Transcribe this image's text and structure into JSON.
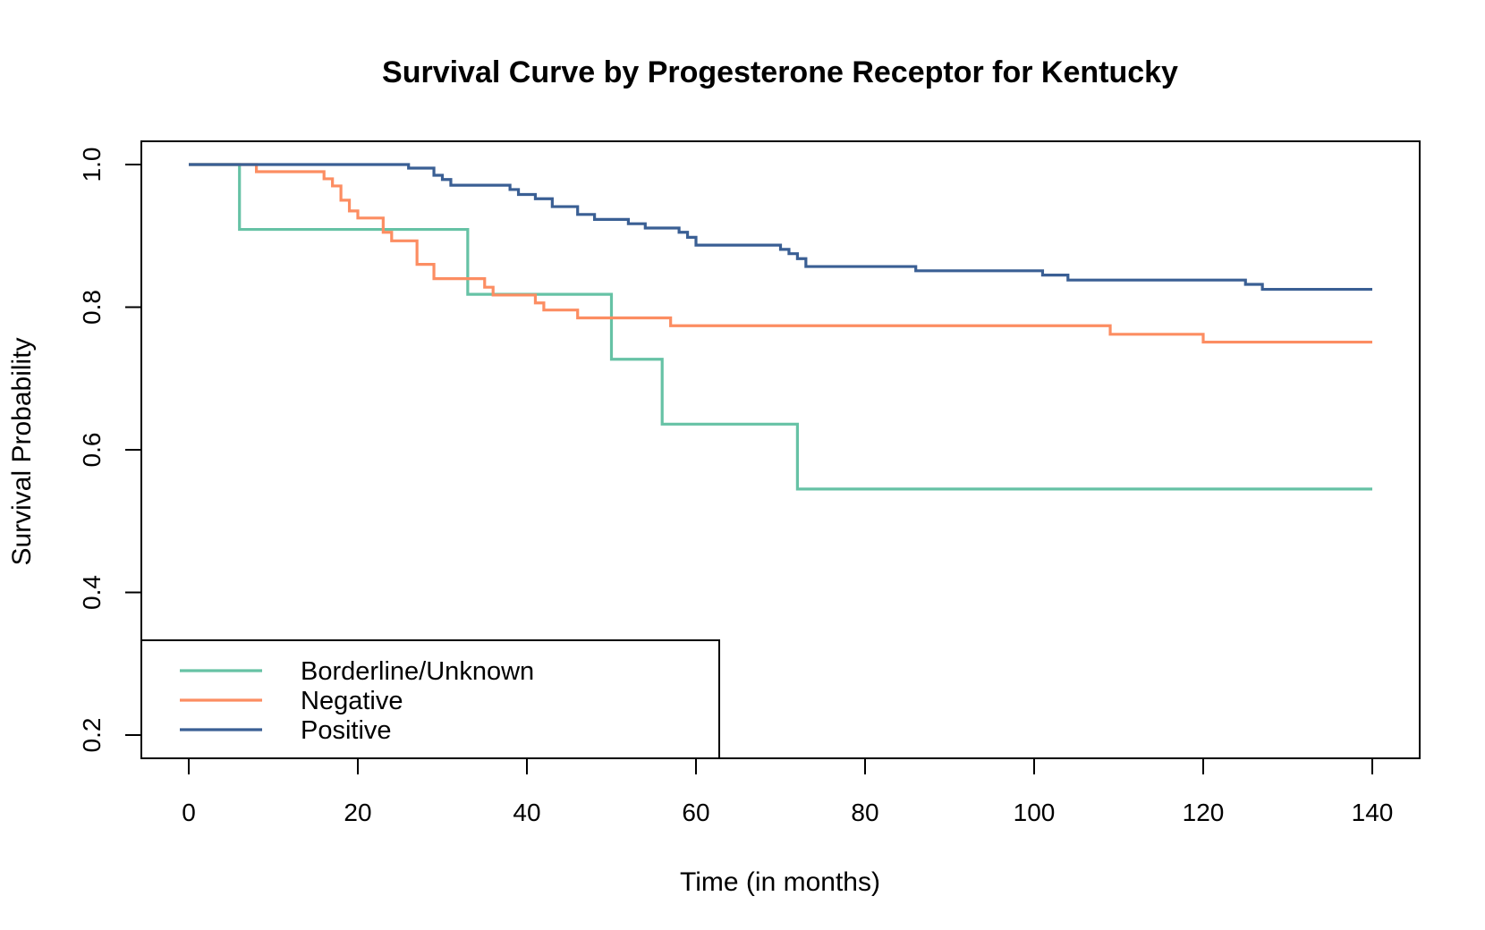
{
  "chart_data": {
    "type": "line",
    "step": true,
    "title": "Survival Curve by Progesterone Receptor for Kentucky",
    "xlabel": "Time (in months)",
    "ylabel": "Survival Probability",
    "xlim": [
      0,
      140
    ],
    "ylim": [
      0.2,
      1.0
    ],
    "xticks": [
      0,
      20,
      40,
      60,
      80,
      100,
      120,
      140
    ],
    "yticks": [
      0.2,
      0.4,
      0.6,
      0.8,
      1.0
    ],
    "ytick_labels": [
      "0.2",
      "0.4",
      "0.6",
      "0.8",
      "1.0"
    ],
    "grid": false,
    "legend_position": "bottom-left",
    "series": [
      {
        "name": "Borderline/Unknown",
        "color": "#66c2a5",
        "x": [
          0,
          6,
          33,
          50,
          56,
          72,
          140
        ],
        "y": [
          1.0,
          0.909,
          0.818,
          0.727,
          0.636,
          0.545,
          0.545
        ]
      },
      {
        "name": "Negative",
        "color": "#fc8d62",
        "x": [
          0,
          8,
          16,
          17,
          18,
          19,
          20,
          23,
          24,
          27,
          29,
          35,
          36,
          41,
          42,
          46,
          57,
          109,
          120,
          140
        ],
        "y": [
          1.0,
          0.99,
          0.98,
          0.97,
          0.95,
          0.935,
          0.925,
          0.905,
          0.893,
          0.86,
          0.84,
          0.828,
          0.817,
          0.806,
          0.796,
          0.785,
          0.774,
          0.762,
          0.751,
          0.751
        ]
      },
      {
        "name": "Positive",
        "color": "#3a5f94",
        "x": [
          0,
          26,
          29,
          30,
          31,
          38,
          39,
          41,
          43,
          46,
          48,
          52,
          54,
          58,
          59,
          60,
          70,
          71,
          72,
          73,
          86,
          101,
          104,
          125,
          127,
          140
        ],
        "y": [
          1.0,
          0.995,
          0.985,
          0.979,
          0.971,
          0.965,
          0.958,
          0.952,
          0.941,
          0.93,
          0.923,
          0.917,
          0.911,
          0.905,
          0.898,
          0.887,
          0.881,
          0.875,
          0.868,
          0.857,
          0.851,
          0.845,
          0.838,
          0.832,
          0.825,
          0.825
        ]
      }
    ]
  }
}
